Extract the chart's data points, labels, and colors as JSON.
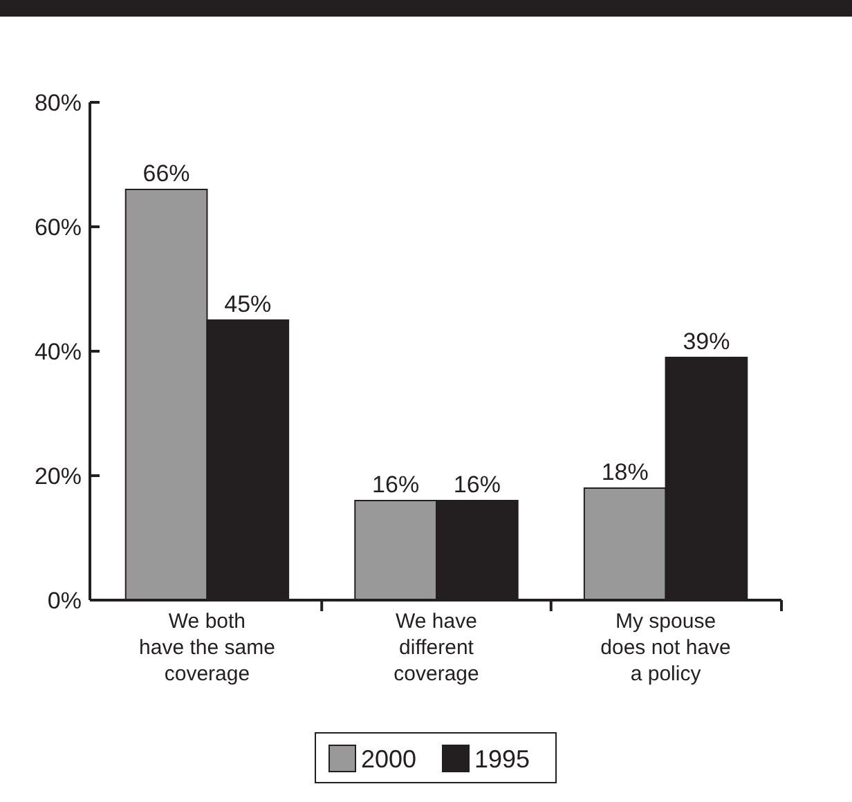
{
  "chart_data": {
    "type": "bar",
    "categories": [
      "We both\nhave the same\ncoverage",
      "We have\ndifferent\ncoverage",
      "My spouse\ndoes not have\na policy"
    ],
    "series": [
      {
        "name": "2000",
        "color": "#999999",
        "values": [
          66,
          16,
          18
        ],
        "value_labels": [
          "66%",
          "16%",
          "18%"
        ]
      },
      {
        "name": "1995",
        "color": "#231f20",
        "values": [
          45,
          16,
          39
        ],
        "value_labels": [
          "45%",
          "16%",
          "39%"
        ]
      }
    ],
    "ylim": [
      0,
      80
    ],
    "yticks": [
      {
        "value": 0,
        "label": "0%"
      },
      {
        "value": 20,
        "label": "20%"
      },
      {
        "value": 40,
        "label": "40%"
      },
      {
        "value": 60,
        "label": "60%"
      },
      {
        "value": 80,
        "label": "80%"
      }
    ],
    "grid": false,
    "legend": "bottom"
  }
}
